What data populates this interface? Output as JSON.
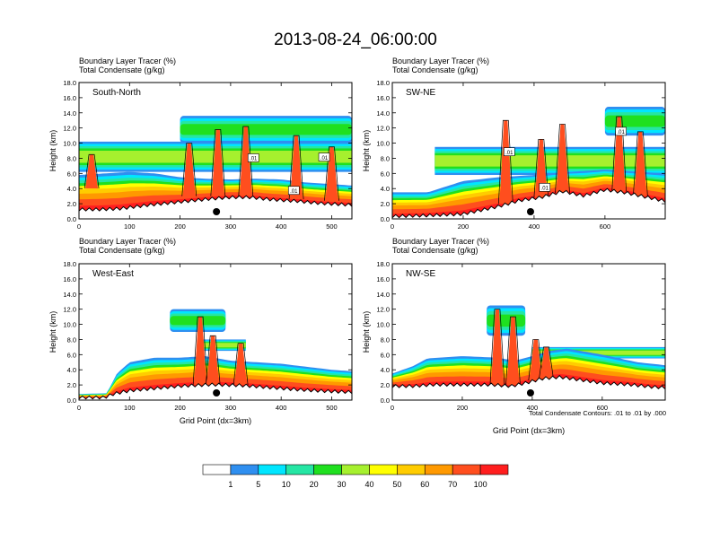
{
  "title": "2013-08-24_06:00:00",
  "colors": {
    "levels": [
      "#ffffff",
      "#2f8ff0",
      "#00e6ff",
      "#25e6a4",
      "#1fe01f",
      "#a6f02e",
      "#ffff00",
      "#ffcc00",
      "#ff9900",
      "#ff4e1e",
      "#ff1e1e"
    ],
    "terrain": "#000000"
  },
  "colorbar": {
    "labels": [
      "1",
      "5",
      "10",
      "20",
      "30",
      "40",
      "50",
      "60",
      "70",
      "100"
    ]
  },
  "footer_note": "Total Condensate Contours: .01 to .01 by .000",
  "chart_data": [
    {
      "type": "heatmap",
      "name": "South-North",
      "title_line1": "Boundary Layer Tracer    (%)",
      "title_line2": "Total Condensate    (g/kg)",
      "ylabel": "Height (km)",
      "xlabel": "",
      "xlim": [
        0,
        540
      ],
      "ylim": [
        0,
        18
      ],
      "xticks": [
        "0",
        "100",
        "200",
        "300",
        "400",
        "500"
      ],
      "yticks": [
        "0.0",
        "2.0",
        "4.0",
        "6.0",
        "8.0",
        "10.0",
        "12.0",
        "14.0",
        "16.0",
        "18.0"
      ],
      "marker_x": 272,
      "contour_labels": [
        ".01",
        ".01",
        ".01"
      ],
      "contour_label_pos": [
        [
          345,
          8.0
        ],
        [
          485,
          8.1
        ],
        [
          425,
          3.7
        ]
      ],
      "terrain_km": [
        [
          0,
          1.2
        ],
        [
          40,
          1.2
        ],
        [
          80,
          1.3
        ],
        [
          140,
          1.8
        ],
        [
          200,
          2.2
        ],
        [
          260,
          2.6
        ],
        [
          300,
          2.8
        ],
        [
          340,
          2.8
        ],
        [
          380,
          2.5
        ],
        [
          430,
          2.3
        ],
        [
          480,
          2.0
        ],
        [
          540,
          1.8
        ]
      ],
      "bl_top_km": [
        [
          0,
          5.8
        ],
        [
          50,
          6.0
        ],
        [
          100,
          6.2
        ],
        [
          150,
          6.0
        ],
        [
          200,
          5.5
        ],
        [
          250,
          5.3
        ],
        [
          300,
          5.2
        ],
        [
          350,
          5.3
        ],
        [
          400,
          5.2
        ],
        [
          450,
          4.8
        ],
        [
          500,
          4.6
        ],
        [
          540,
          4.4
        ]
      ],
      "mid_cloud": {
        "base": 6.2,
        "top": 10.2,
        "x_from": 0,
        "x_to": 540
      },
      "upper_cloud": {
        "base": 10.0,
        "top": 13.6,
        "x_from": 200,
        "x_to": 540
      },
      "towers": [
        [
          25,
          4.0,
          8.5
        ],
        [
          218,
          3.0,
          10.0
        ],
        [
          275,
          3.0,
          11.8
        ],
        [
          330,
          3.0,
          12.2
        ],
        [
          430,
          2.6,
          11.0
        ],
        [
          500,
          2.4,
          9.5
        ]
      ]
    },
    {
      "type": "heatmap",
      "name": "SW-NE",
      "title_line1": "Boundary Layer Tracer    (%)",
      "title_line2": "Total Condensate    (g/kg)",
      "ylabel": "Height (km)",
      "xlabel": "",
      "xlim": [
        0,
        770
      ],
      "ylim": [
        0,
        18
      ],
      "xticks": [
        "0",
        "200",
        "400",
        "600"
      ],
      "yticks": [
        "0.0",
        "2.0",
        "4.0",
        "6.0",
        "8.0",
        "10.0",
        "12.0",
        "14.0",
        "16.0",
        "18.0"
      ],
      "marker_x": 390,
      "contour_labels": [
        ".01",
        ".01",
        ".01"
      ],
      "contour_label_pos": [
        [
          330,
          8.8
        ],
        [
          430,
          4.1
        ],
        [
          645,
          11.5
        ]
      ],
      "terrain_km": [
        [
          0,
          0.3
        ],
        [
          100,
          0.4
        ],
        [
          200,
          0.6
        ],
        [
          300,
          1.6
        ],
        [
          360,
          2.4
        ],
        [
          420,
          2.8
        ],
        [
          480,
          3.6
        ],
        [
          540,
          3.0
        ],
        [
          600,
          3.8
        ],
        [
          660,
          3.4
        ],
        [
          720,
          2.8
        ],
        [
          770,
          2.3
        ]
      ],
      "bl_top_km": [
        [
          0,
          3.5
        ],
        [
          100,
          3.5
        ],
        [
          200,
          5.0
        ],
        [
          300,
          5.5
        ],
        [
          400,
          5.8
        ],
        [
          500,
          6.2
        ],
        [
          600,
          6.5
        ],
        [
          700,
          6.2
        ],
        [
          770,
          6.0
        ]
      ],
      "mid_cloud": {
        "base": 5.8,
        "top": 9.5,
        "x_from": 120,
        "x_to": 770
      },
      "upper_cloud": {
        "base": 11.0,
        "top": 14.8,
        "x_from": 600,
        "x_to": 770
      },
      "towers": [
        [
          320,
          2.0,
          13.0
        ],
        [
          420,
          2.8,
          10.5
        ],
        [
          480,
          3.4,
          12.5
        ],
        [
          640,
          3.6,
          13.5
        ],
        [
          700,
          3.0,
          11.5
        ]
      ]
    },
    {
      "type": "heatmap",
      "name": "West-East",
      "title_line1": "Boundary Layer Tracer    (%)",
      "title_line2": "Total Condensate    (g/kg)",
      "ylabel": "Height (km)",
      "xlabel": "Grid Point (dx=3km)",
      "xlim": [
        0,
        540
      ],
      "ylim": [
        0,
        18
      ],
      "xticks": [
        "0",
        "100",
        "200",
        "300",
        "400",
        "500"
      ],
      "yticks": [
        "0.0",
        "2.0",
        "4.0",
        "6.0",
        "8.0",
        "10.0",
        "12.0",
        "14.0",
        "16.0",
        "18.0"
      ],
      "marker_x": 272,
      "contour_labels": [],
      "contour_label_pos": [],
      "terrain_km": [
        [
          0,
          0.3
        ],
        [
          50,
          0.3
        ],
        [
          70,
          0.8
        ],
        [
          100,
          1.2
        ],
        [
          150,
          1.5
        ],
        [
          200,
          1.8
        ],
        [
          260,
          2.0
        ],
        [
          320,
          1.9
        ],
        [
          380,
          1.6
        ],
        [
          440,
          1.3
        ],
        [
          500,
          1.1
        ],
        [
          540,
          1.0
        ]
      ],
      "bl_top_km": [
        [
          0,
          0.8
        ],
        [
          55,
          0.9
        ],
        [
          75,
          3.5
        ],
        [
          100,
          5.0
        ],
        [
          150,
          5.6
        ],
        [
          200,
          5.6
        ],
        [
          250,
          5.8
        ],
        [
          300,
          5.2
        ],
        [
          350,
          5.0
        ],
        [
          400,
          4.8
        ],
        [
          450,
          4.4
        ],
        [
          500,
          4.0
        ],
        [
          540,
          3.8
        ]
      ],
      "mid_cloud": {
        "base": 6.5,
        "top": 8.0,
        "x_from": 240,
        "x_to": 330
      },
      "upper_cloud": {
        "base": 9.0,
        "top": 12.0,
        "x_from": 180,
        "x_to": 290
      },
      "towers": [
        [
          240,
          2.0,
          11.0
        ],
        [
          265,
          2.0,
          8.5
        ],
        [
          320,
          2.0,
          7.5
        ]
      ]
    },
    {
      "type": "heatmap",
      "name": "NW-SE",
      "title_line1": "Boundary Layer Tracer    (%)",
      "title_line2": "Total Condensate    (g/kg)",
      "ylabel": "Height (km)",
      "xlabel": "Grid Point (dx=3km)",
      "xlim": [
        0,
        780
      ],
      "ylim": [
        0,
        18
      ],
      "xticks": [
        "0",
        "200",
        "400",
        "600"
      ],
      "yticks": [
        "0.0",
        "2.0",
        "4.0",
        "6.0",
        "8.0",
        "10.0",
        "12.0",
        "14.0",
        "16.0",
        "18.0"
      ],
      "marker_x": 395,
      "contour_labels": [],
      "contour_label_pos": [],
      "terrain_km": [
        [
          0,
          1.8
        ],
        [
          60,
          1.8
        ],
        [
          120,
          2.0
        ],
        [
          200,
          2.0
        ],
        [
          280,
          2.0
        ],
        [
          340,
          1.8
        ],
        [
          380,
          2.2
        ],
        [
          430,
          2.8
        ],
        [
          480,
          3.0
        ],
        [
          540,
          2.6
        ],
        [
          600,
          2.2
        ],
        [
          680,
          2.0
        ],
        [
          740,
          1.7
        ],
        [
          780,
          1.6
        ]
      ],
      "bl_top_km": [
        [
          0,
          3.5
        ],
        [
          60,
          4.5
        ],
        [
          100,
          5.5
        ],
        [
          200,
          5.8
        ],
        [
          300,
          5.6
        ],
        [
          350,
          5.2
        ],
        [
          400,
          5.8
        ],
        [
          450,
          6.5
        ],
        [
          500,
          6.8
        ],
        [
          600,
          6.0
        ],
        [
          700,
          5.0
        ],
        [
          780,
          4.6
        ]
      ],
      "mid_cloud": {
        "base": 5.5,
        "top": 7.0,
        "x_from": 400,
        "x_to": 780
      },
      "upper_cloud": {
        "base": 8.5,
        "top": 12.5,
        "x_from": 270,
        "x_to": 380
      },
      "towers": [
        [
          300,
          2.0,
          12.0
        ],
        [
          345,
          2.0,
          11.0
        ],
        [
          410,
          2.6,
          8.0
        ],
        [
          440,
          2.8,
          7.0
        ]
      ]
    }
  ]
}
